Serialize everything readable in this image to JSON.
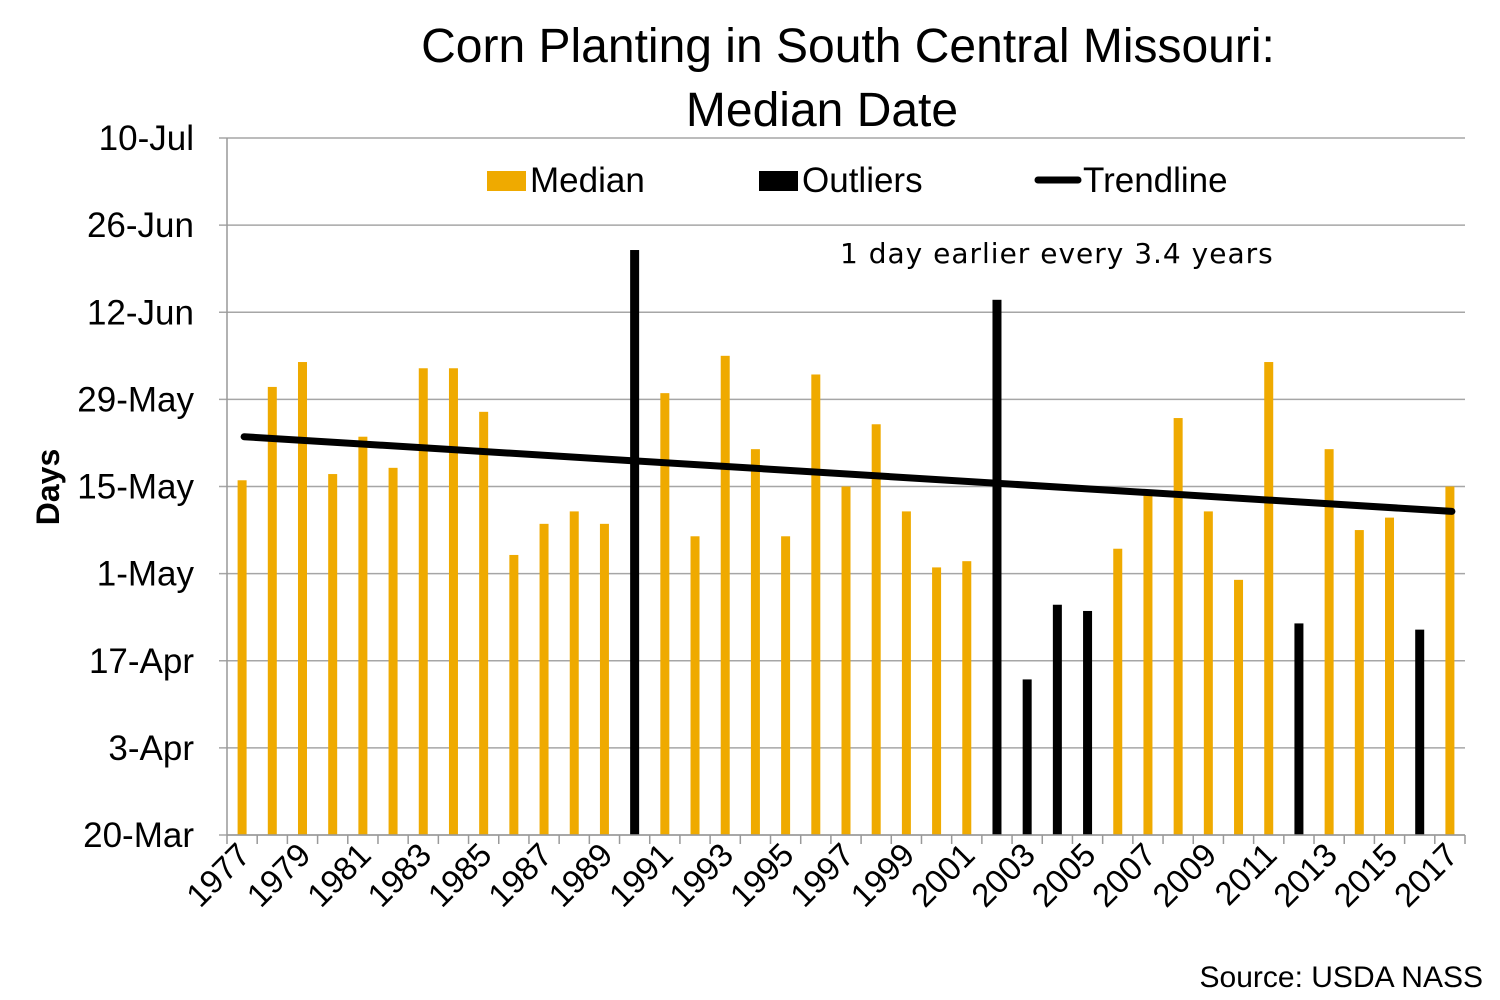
{
  "chart_data": {
    "type": "bar",
    "title": "Corn Planting in South Central Missouri:",
    "subtitle": "Median Date",
    "xlabel": "",
    "ylabel": "Days",
    "y_ticks": [
      "20-Mar",
      "3-Apr",
      "17-Apr",
      "1-May",
      "15-May",
      "29-May",
      "12-Jun",
      "26-Jun",
      "10-Jul"
    ],
    "ylim": [
      "20-Mar",
      "10-Jul"
    ],
    "grid": true,
    "legend_position": "top",
    "colors": {
      "median": "#EFAA00",
      "outliers": "#000000",
      "trendline": "#000000"
    },
    "legend": [
      {
        "key": "median",
        "label": "Median",
        "kind": "bar"
      },
      {
        "key": "outliers",
        "label": "Outliers",
        "kind": "bar"
      },
      {
        "key": "trendline",
        "label": "Trendline",
        "kind": "line"
      }
    ],
    "annotation": "1 day earlier every 3.4 years",
    "source": "Source: USDA NASS",
    "x_tick_labels": [
      "1977",
      "1979",
      "1981",
      "1983",
      "1985",
      "1987",
      "1989",
      "1991",
      "1993",
      "1995",
      "1997",
      "1999",
      "2001",
      "2003",
      "2005",
      "2007",
      "2009",
      "2011",
      "2013",
      "2015",
      "2017"
    ],
    "categories": [
      "1977",
      "1978",
      "1979",
      "1980",
      "1981",
      "1982",
      "1983",
      "1984",
      "1985",
      "1986",
      "1987",
      "1988",
      "1989",
      "1990",
      "1991",
      "1992",
      "1993",
      "1994",
      "1995",
      "1996",
      "1997",
      "1998",
      "1999",
      "2000",
      "2001",
      "2002",
      "2003",
      "2004",
      "2005",
      "2006",
      "2007",
      "2008",
      "2009",
      "2010",
      "2011",
      "2012",
      "2013",
      "2014",
      "2015",
      "2016",
      "2017"
    ],
    "series": [
      {
        "name": "Median",
        "values": [
          "16-May",
          "31-May",
          "4-Jun",
          "17-May",
          "23-May",
          "18-May",
          "3-Jun",
          "3-Jun",
          "27-May",
          "4-May",
          "9-May",
          "11-May",
          "9-May",
          null,
          "30-May",
          "7-May",
          "5-Jun",
          "21-May",
          "7-May",
          "2-Jun",
          "15-May",
          "25-May",
          "11-May",
          "2-May",
          "3-May",
          null,
          null,
          null,
          null,
          "5-May",
          "14-May",
          "26-May",
          "11-May",
          "30-Apr",
          "4-Jun",
          null,
          "21-May",
          "8-May",
          "10-May",
          null,
          "15-May"
        ]
      },
      {
        "name": "Outliers",
        "values": [
          null,
          null,
          null,
          null,
          null,
          null,
          null,
          null,
          null,
          null,
          null,
          null,
          null,
          "22-Jun",
          null,
          null,
          null,
          null,
          null,
          null,
          null,
          null,
          null,
          null,
          null,
          "14-Jun",
          "14-Apr",
          "26-Apr",
          "25-Apr",
          null,
          null,
          null,
          null,
          null,
          null,
          "23-Apr",
          null,
          null,
          null,
          "22-Apr",
          null
        ]
      },
      {
        "name": "Trendline",
        "type": "line",
        "points": [
          {
            "x": "1977",
            "y": "23-May"
          },
          {
            "x": "2017",
            "y": "11-May"
          }
        ]
      }
    ]
  }
}
